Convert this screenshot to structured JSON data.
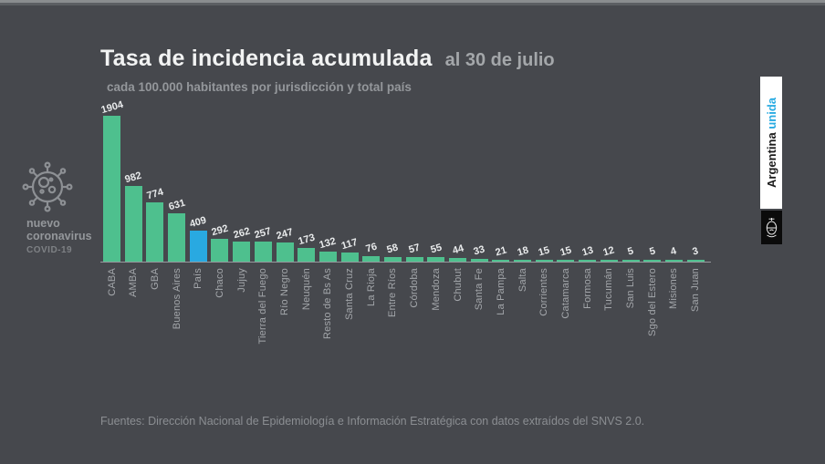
{
  "page": {
    "title": "Tasa de incidencia acumulada",
    "title_suffix": "al 30 de julio",
    "subtitle": "cada 100.000 habitantes por jurisdicción y total país",
    "footer": "Fuentes: Dirección Nacional de Epidemiología e Información Estratégica con datos extraídos del SNVS 2.0."
  },
  "branding": {
    "logo_line1": "nuevo",
    "logo_line2": "coronavirus",
    "logo_line3": "COVID-19",
    "banner_black": "Argentina",
    "banner_accent": "unida"
  },
  "icons": {
    "virus": "coronavirus-icon",
    "emblem": "coat-of-arms-icon"
  },
  "colors": {
    "background": "#46484d",
    "bar_green": "#4ec08e",
    "bar_blue": "#29a9e1",
    "accent_cyan": "#29abe2",
    "title_white": "#f2f3f3",
    "label_gray": "#a3a6aa"
  },
  "chart_data": {
    "type": "bar",
    "title": "Tasa de incidencia acumulada al 30 de julio",
    "subtitle": "cada 100.000 habitantes por jurisdicción y total país",
    "categories": [
      "CABA",
      "AMBA",
      "GBA",
      "Buenos Aires",
      "País",
      "Chaco",
      "Jujuy",
      "Tierra del Fuego",
      "Río Negro",
      "Neuquén",
      "Resto de Bs As",
      "Santa Cruz",
      "La Rioja",
      "Entre Ríos",
      "Córdoba",
      "Mendoza",
      "Chubut",
      "Santa Fe",
      "La Pampa",
      "Salta",
      "Corrientes",
      "Catamarca",
      "Formosa",
      "Tucumán",
      "San Luis",
      "Sgo del Estero",
      "Misiones",
      "San Juan"
    ],
    "values": [
      1904,
      982,
      774,
      631,
      409,
      292,
      262,
      257,
      247,
      173,
      132,
      117,
      76,
      58,
      57,
      55,
      44,
      33,
      21,
      18,
      15,
      15,
      13,
      12,
      5,
      5,
      4,
      3
    ],
    "highlight_category": "País",
    "highlight_color": "#29a9e1",
    "bar_color": "#4ec08e",
    "value_labels": true,
    "grid": false,
    "legend": false,
    "ylim": [
      0,
      1904
    ]
  }
}
